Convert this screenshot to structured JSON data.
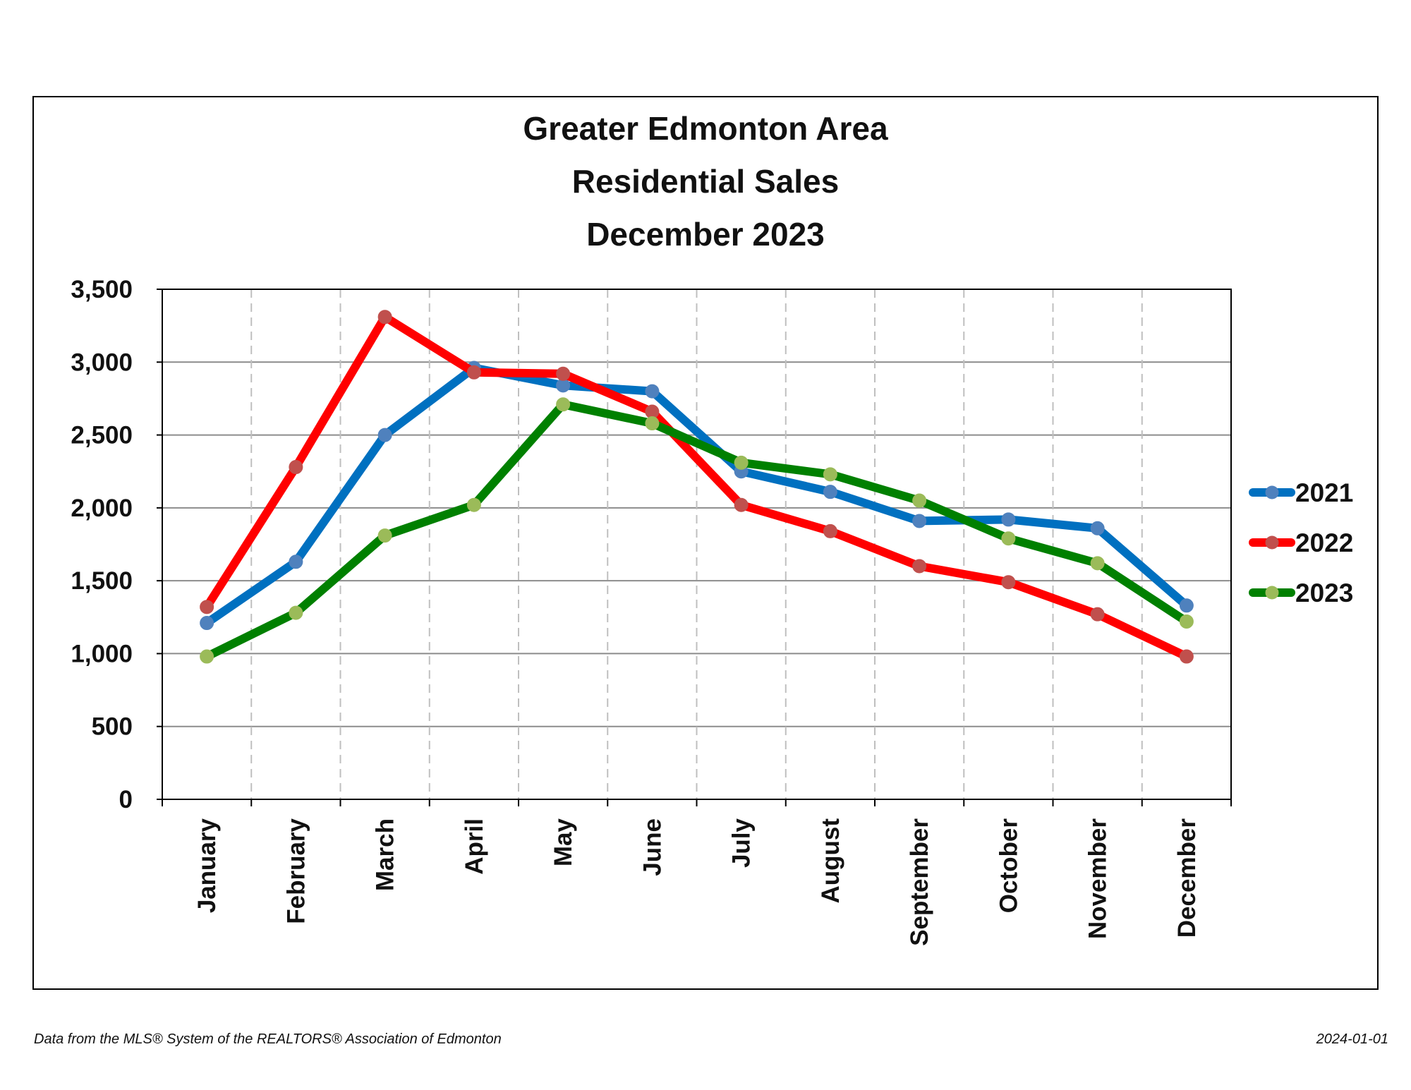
{
  "chart_data": {
    "type": "line",
    "title": [
      "Greater Edmonton Area",
      "Residential Sales",
      "December 2023"
    ],
    "categories": [
      "January",
      "February",
      "March",
      "April",
      "May",
      "June",
      "July",
      "August",
      "September",
      "October",
      "November",
      "December"
    ],
    "ylim": [
      0,
      3500
    ],
    "yticks": [
      0,
      500,
      1000,
      1500,
      2000,
      2500,
      3000,
      3500
    ],
    "ytick_labels": [
      "0",
      "500",
      "1,000",
      "1,500",
      "2,000",
      "2,500",
      "3,000",
      "3,500"
    ],
    "grid": {
      "horizontal": "solid",
      "vertical": "dashed"
    },
    "legend_position": "right",
    "series": [
      {
        "name": "2021",
        "line_color": "#0070C0",
        "marker_color": "#4F81BD",
        "values": [
          1210,
          1630,
          2500,
          2960,
          2840,
          2800,
          2250,
          2110,
          1910,
          1920,
          1860,
          1330
        ]
      },
      {
        "name": "2022",
        "line_color": "#FF0000",
        "marker_color": "#C0504D",
        "values": [
          1320,
          2280,
          3310,
          2930,
          2920,
          2660,
          2020,
          1840,
          1600,
          1490,
          1270,
          980
        ]
      },
      {
        "name": "2023",
        "line_color": "#008000",
        "marker_color": "#9BBB59",
        "values": [
          980,
          1280,
          1810,
          2020,
          2710,
          2580,
          2310,
          2230,
          2050,
          1790,
          1620,
          1220
        ]
      }
    ]
  },
  "footer": {
    "source": "Data from the MLS® System of the REALTORS® Association of Edmonton",
    "date": "2024-01-01"
  }
}
